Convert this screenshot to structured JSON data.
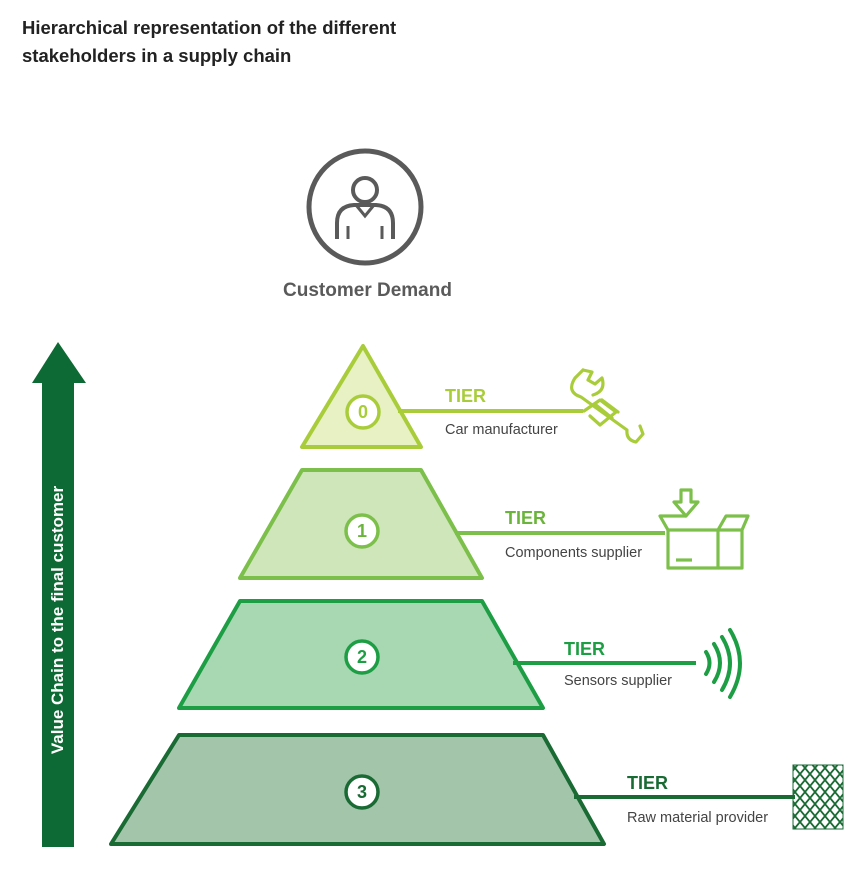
{
  "title": {
    "line1": "Hierarchical representation of the different",
    "line2": "stakeholders in a supply chain"
  },
  "customer": {
    "label": "Customer Demand",
    "icon": "person-icon"
  },
  "value_chain_label": "Value Chain to the final customer",
  "colors": {
    "arrow": "#0e6a34",
    "customer_icon": "#5a5a5a"
  },
  "tiers": [
    {
      "number": "0",
      "word": "TIER",
      "description": "Car manufacturer",
      "icon": "wrench-icon",
      "stroke": "#a9cd3a",
      "fill": "#e7f1c4",
      "text": "#a9cd3a"
    },
    {
      "number": "1",
      "word": "TIER",
      "description": "Components supplier",
      "icon": "box-icon",
      "stroke": "#7cc04b",
      "fill": "#cfe6ba",
      "text": "#6bb43c"
    },
    {
      "number": "2",
      "word": "TIER",
      "description": "Sensors supplier",
      "icon": "signal-icon",
      "stroke": "#1e9e44",
      "fill": "#a7d8b2",
      "text": "#1e9e44"
    },
    {
      "number": "3",
      "word": "TIER",
      "description": "Raw material provider",
      "icon": "mesh-icon",
      "stroke": "#1a6a34",
      "fill": "#a3c6ab",
      "text": "#1a6a34"
    }
  ]
}
